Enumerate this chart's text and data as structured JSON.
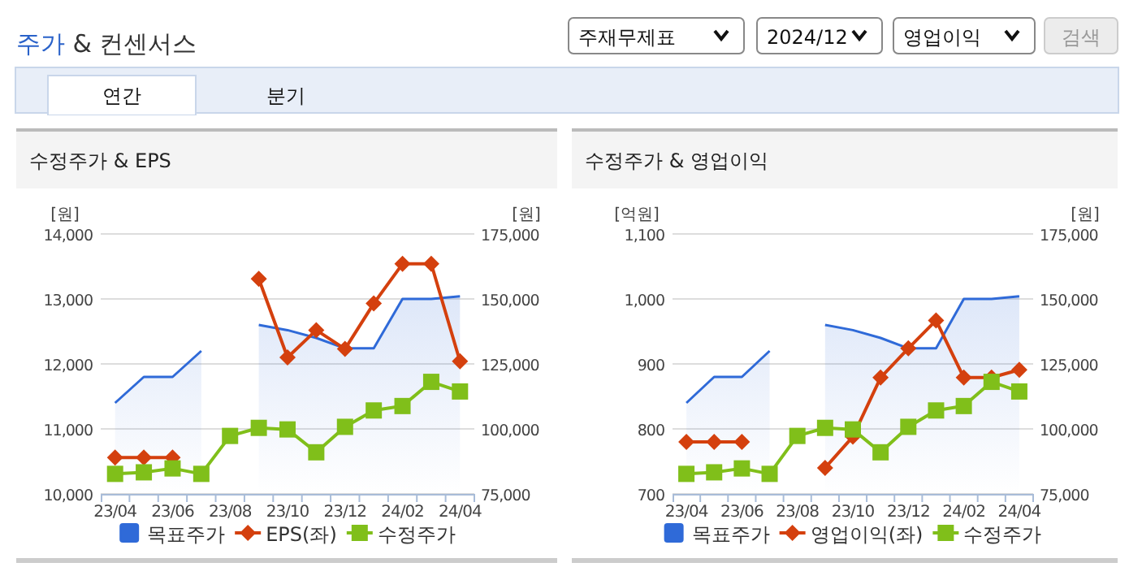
{
  "chart_data": [
    {
      "type": "other",
      "title": "주가 & 컨센서스",
      "annotations": [
        "주재무제표",
        "2024/12",
        "영업이익",
        "검색",
        "연간",
        "분기"
      ]
    },
    {
      "type": "line",
      "title": "수정주가 & EPS",
      "ylabel": "[원]",
      "y2label": "[원]",
      "categories": [
        "23/04",
        null,
        "23/06",
        null,
        "23/08",
        null,
        "23/10",
        null,
        "23/12",
        null,
        "24/02",
        null,
        "24/04"
      ],
      "ylim": [
        10000,
        14000
      ],
      "yticks": [
        {
          "value": 10000,
          "label": "10,000"
        },
        {
          "value": 11000,
          "label": "11,000"
        },
        {
          "value": 12000,
          "label": "12,000"
        },
        {
          "value": 13000,
          "label": "13,000"
        },
        {
          "value": 14000,
          "label": "14,000"
        }
      ],
      "y2lim": [
        75000,
        175000
      ],
      "y2ticks": [
        {
          "value": 75000,
          "label": "75,000"
        },
        {
          "value": 100000,
          "label": "100,000"
        },
        {
          "value": 125000,
          "label": "125,000"
        },
        {
          "value": 150000,
          "label": "150,000"
        },
        {
          "value": 175000,
          "label": "175,000"
        }
      ],
      "grid": "y",
      "legend": "bottom",
      "series": [
        {
          "name": "목표주가",
          "type": "area",
          "axis": "y2",
          "color": "#2f6ad8",
          "values": [
            110000,
            120000,
            120000,
            130000,
            null,
            140000,
            138000,
            135000,
            131000,
            131000,
            150000,
            150000,
            151000
          ]
        },
        {
          "name": "EPS(좌)",
          "type": "line",
          "axis": "y",
          "marker": "diamond",
          "color": "#d4400e",
          "values": [
            10560,
            10560,
            10560,
            null,
            null,
            13310,
            12100,
            12520,
            12230,
            12930,
            13540,
            13540,
            12040
          ]
        },
        {
          "name": "수정주가",
          "type": "line",
          "axis": "y2",
          "marker": "square",
          "color": "#80bf1a",
          "values": [
            82700,
            83300,
            84800,
            82700,
            97300,
            100400,
            99800,
            91000,
            100800,
            107100,
            108800,
            118100,
            114400
          ]
        }
      ]
    },
    {
      "type": "line",
      "title": "수정주가 & 영업이익",
      "ylabel": "[억원]",
      "y2label": "[원]",
      "categories": [
        "23/04",
        null,
        "23/06",
        null,
        "23/08",
        null,
        "23/10",
        null,
        "23/12",
        null,
        "24/02",
        null,
        "24/04"
      ],
      "ylim": [
        700,
        1100
      ],
      "yticks": [
        700,
        800,
        900,
        {
          "value": 1000,
          "label": "1,000"
        },
        {
          "value": 1100,
          "label": "1,100"
        }
      ],
      "y2lim": [
        75000,
        175000
      ],
      "y2ticks": [
        {
          "value": 75000,
          "label": "75,000"
        },
        {
          "value": 100000,
          "label": "100,000"
        },
        {
          "value": 125000,
          "label": "125,000"
        },
        {
          "value": 150000,
          "label": "150,000"
        },
        {
          "value": 175000,
          "label": "175,000"
        }
      ],
      "grid": "y",
      "legend": "bottom",
      "series": [
        {
          "name": "목표주가",
          "type": "area",
          "axis": "y2",
          "color": "#2f6ad8",
          "values": [
            110000,
            120000,
            120000,
            130000,
            null,
            140000,
            138000,
            135000,
            131000,
            131000,
            150000,
            150000,
            151000
          ]
        },
        {
          "name": "영업이익(좌)",
          "type": "line",
          "axis": "y",
          "marker": "diamond",
          "color": "#d4400e",
          "values": [
            780,
            780,
            780,
            null,
            null,
            740,
            788,
            879,
            924,
            967,
            879,
            879,
            891
          ]
        },
        {
          "name": "수정주가",
          "type": "line",
          "axis": "y2",
          "marker": "square",
          "color": "#80bf1a",
          "values": [
            82700,
            83300,
            84800,
            82700,
            97300,
            100400,
            99800,
            91000,
            100800,
            107100,
            108800,
            118100,
            114400
          ]
        }
      ]
    }
  ]
}
